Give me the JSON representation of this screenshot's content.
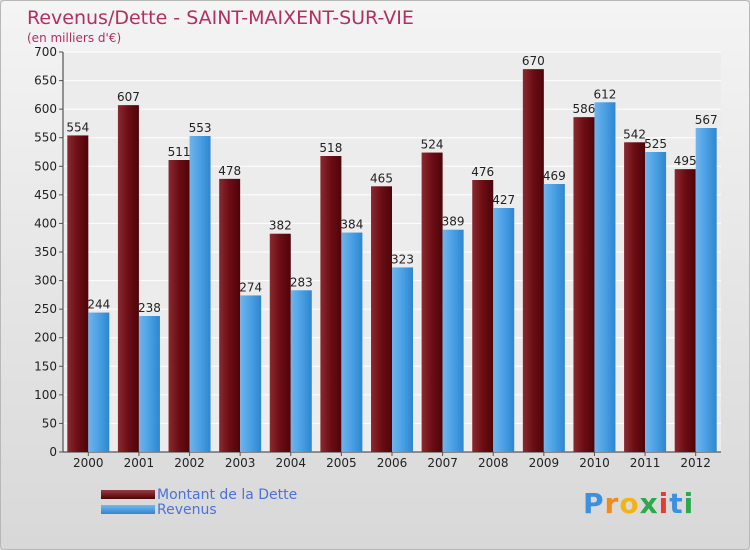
{
  "header": {
    "title": "Revenus/Dette - SAINT-MAIXENT-SUR-VIE",
    "subtitle": "(en milliers d'€)"
  },
  "logo": {
    "text": "Proxiti"
  },
  "colors": {
    "dette": "#6b0d14",
    "revenus": "#3d97df",
    "title": "#b03060",
    "legend_text": "#4a72d9"
  },
  "chart_data": {
    "type": "bar",
    "title": "Revenus/Dette - SAINT-MAIXENT-SUR-VIE",
    "subtitle": "(en milliers d'€)",
    "categories": [
      "2000",
      "2001",
      "2002",
      "2003",
      "2004",
      "2005",
      "2006",
      "2007",
      "2008",
      "2009",
      "2010",
      "2011",
      "2012"
    ],
    "series": [
      {
        "name": "Montant de la Dette",
        "values": [
          554,
          607,
          511,
          478,
          382,
          518,
          465,
          524,
          476,
          670,
          586,
          542,
          495
        ]
      },
      {
        "name": "Revenus",
        "values": [
          244,
          238,
          553,
          274,
          283,
          384,
          323,
          389,
          427,
          469,
          612,
          525,
          567
        ]
      }
    ],
    "ylim": [
      0,
      700
    ],
    "yticks": [
      0,
      50,
      100,
      150,
      200,
      250,
      300,
      350,
      400,
      450,
      500,
      550,
      600,
      650,
      700
    ],
    "grid": true,
    "legend_position": "bottom-left"
  }
}
